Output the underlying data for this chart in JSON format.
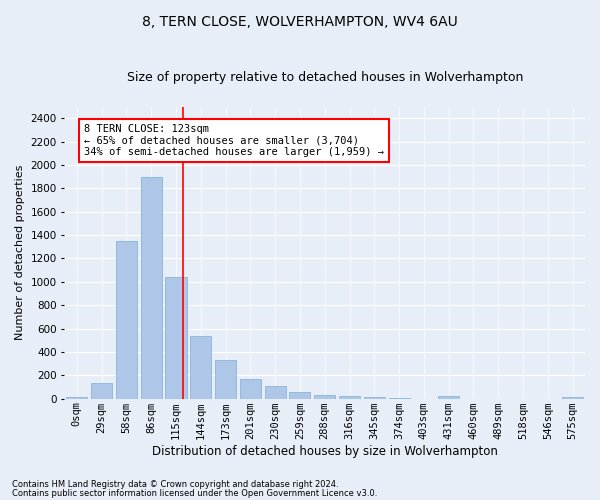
{
  "title": "8, TERN CLOSE, WOLVERHAMPTON, WV4 6AU",
  "subtitle": "Size of property relative to detached houses in Wolverhampton",
  "xlabel": "Distribution of detached houses by size in Wolverhampton",
  "ylabel": "Number of detached properties",
  "bar_color": "#aec6e8",
  "bar_edge_color": "#7aafd4",
  "categories": [
    "0sqm",
    "29sqm",
    "58sqm",
    "86sqm",
    "115sqm",
    "144sqm",
    "173sqm",
    "201sqm",
    "230sqm",
    "259sqm",
    "288sqm",
    "316sqm",
    "345sqm",
    "374sqm",
    "403sqm",
    "431sqm",
    "460sqm",
    "489sqm",
    "518sqm",
    "546sqm",
    "575sqm"
  ],
  "values": [
    15,
    130,
    1350,
    1900,
    1040,
    535,
    335,
    165,
    110,
    55,
    30,
    25,
    10,
    5,
    0,
    20,
    0,
    0,
    0,
    0,
    15
  ],
  "ylim": [
    0,
    2500
  ],
  "yticks": [
    0,
    200,
    400,
    600,
    800,
    1000,
    1200,
    1400,
    1600,
    1800,
    2000,
    2200,
    2400
  ],
  "vline_x": 4.27,
  "annotation_title": "8 TERN CLOSE: 123sqm",
  "annotation_line1": "← 65% of detached houses are smaller (3,704)",
  "annotation_line2": "34% of semi-detached houses are larger (1,959) →",
  "footer_line1": "Contains HM Land Registry data © Crown copyright and database right 2024.",
  "footer_line2": "Contains public sector information licensed under the Open Government Licence v3.0.",
  "background_color": "#e8eef7",
  "grid_color": "#ffffff",
  "title_fontsize": 10,
  "subtitle_fontsize": 9,
  "xlabel_fontsize": 8.5,
  "ylabel_fontsize": 8,
  "tick_fontsize": 7.5,
  "annotation_fontsize": 7.5,
  "footer_fontsize": 6
}
